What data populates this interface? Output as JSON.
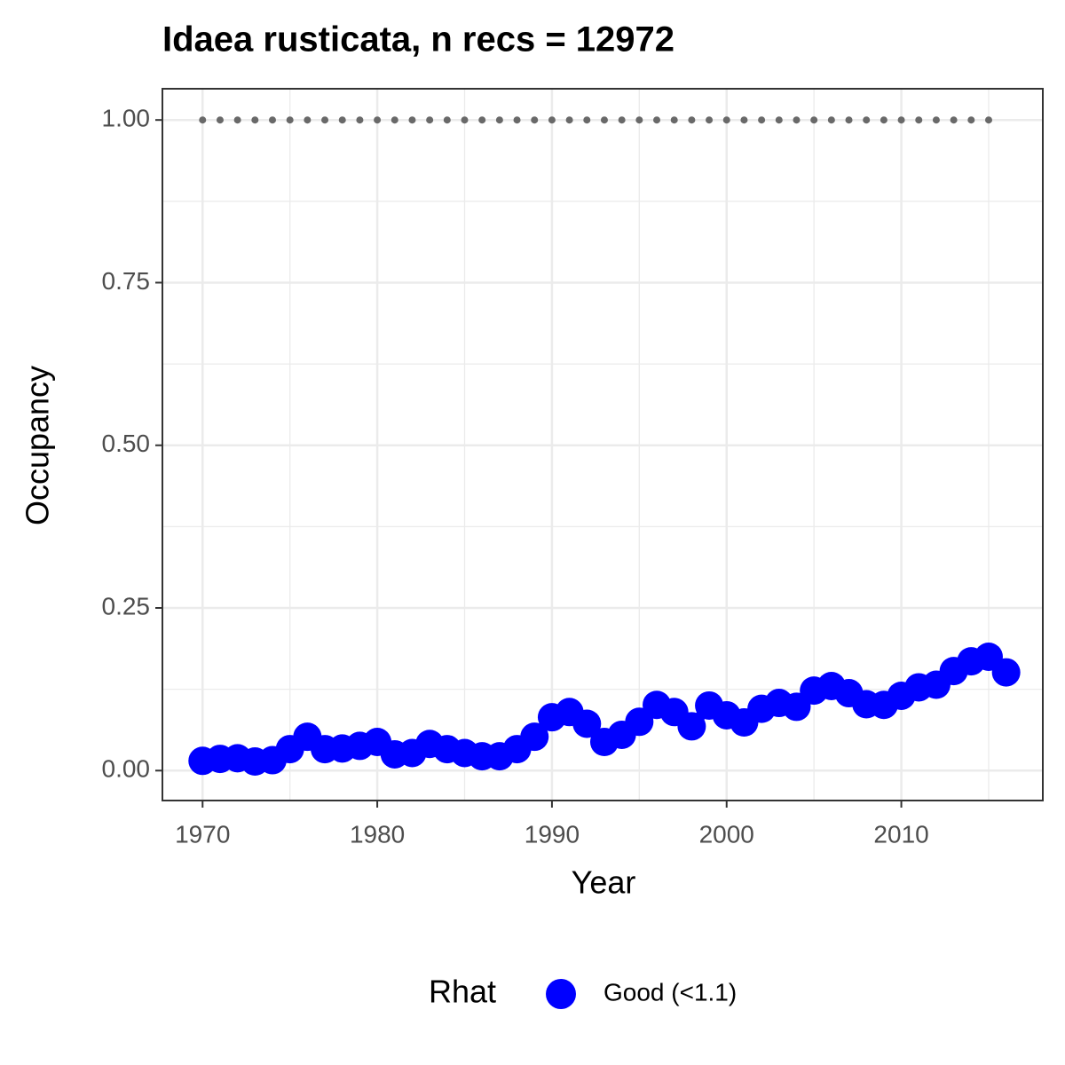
{
  "chart_data": {
    "type": "line",
    "title": "Idaea rusticata, n recs = 12972",
    "x_label": "Year",
    "y_label": "Occupancy",
    "x": [
      1970,
      1971,
      1972,
      1973,
      1974,
      1975,
      1976,
      1977,
      1978,
      1979,
      1980,
      1981,
      1982,
      1983,
      1984,
      1985,
      1986,
      1987,
      1988,
      1989,
      1990,
      1991,
      1992,
      1993,
      1994,
      1995,
      1996,
      1997,
      1998,
      1999,
      2000,
      2001,
      2002,
      2003,
      2004,
      2005,
      2006,
      2007,
      2008,
      2009,
      2010,
      2011,
      2012,
      2013,
      2014,
      2015,
      2016
    ],
    "series": [
      {
        "name": "Good (<1.1)",
        "color": "#0000ff",
        "values": [
          0.015,
          0.018,
          0.019,
          0.014,
          0.016,
          0.033,
          0.052,
          0.033,
          0.034,
          0.038,
          0.044,
          0.025,
          0.027,
          0.041,
          0.033,
          0.027,
          0.022,
          0.022,
          0.033,
          0.052,
          0.082,
          0.09,
          0.072,
          0.044,
          0.055,
          0.075,
          0.101,
          0.09,
          0.068,
          0.1,
          0.085,
          0.074,
          0.095,
          0.104,
          0.098,
          0.123,
          0.13,
          0.119,
          0.102,
          0.101,
          0.115,
          0.128,
          0.132,
          0.153,
          0.168,
          0.175,
          0.151
        ]
      },
      {
        "color": "#696969",
        "values": [
          1,
          1,
          1,
          1,
          1,
          1,
          1,
          1,
          1,
          1,
          1,
          1,
          1,
          1,
          1,
          1,
          1,
          1,
          1,
          1,
          1,
          1,
          1,
          1,
          1,
          1,
          1,
          1,
          1,
          1,
          1,
          1,
          1,
          1,
          1,
          1,
          1,
          1,
          1,
          1,
          1,
          1,
          1,
          1,
          1,
          1,
          null
        ]
      }
    ],
    "legend_title": "Rhat",
    "xlim": [
      1967.7,
      2018.1
    ],
    "ylim": [
      -0.046,
      1.048
    ],
    "xticks": [
      1970,
      1980,
      1990,
      2000,
      2010
    ],
    "yticks": [
      {
        "value": 0,
        "label": "0.00"
      },
      {
        "value": 0.25,
        "label": "0.25"
      },
      {
        "value": 0.5,
        "label": "0.50"
      },
      {
        "value": 0.75,
        "label": "0.75"
      },
      {
        "value": 1,
        "label": "1.00"
      }
    ],
    "grid": true
  }
}
